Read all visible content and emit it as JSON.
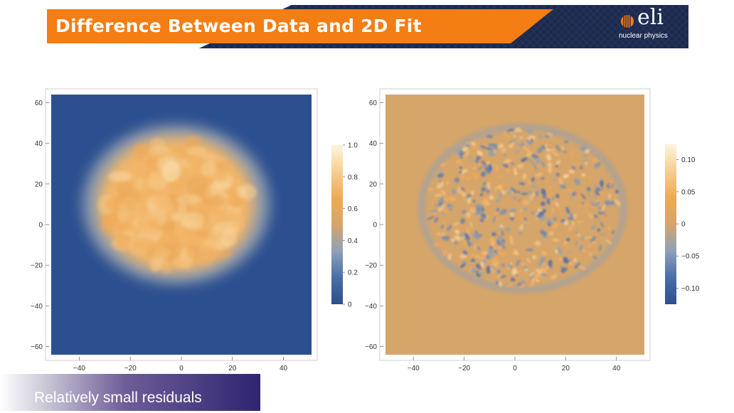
{
  "slide": {
    "title": "Difference Between Data and 2D Fit",
    "caption": "Relatively small residuals",
    "logo": {
      "word": "eli",
      "subtitle": "nuclear physics"
    }
  },
  "colors": {
    "banner_orange": "#f47d14",
    "banner_navy": "#1c2a4e",
    "colormap": [
      "#2c4f8f",
      "#4a6ea8",
      "#8ea1b8",
      "#d6a56a",
      "#f0a955",
      "#f6cf92",
      "#fdf5df"
    ]
  },
  "chart_data": [
    {
      "type": "heatmap",
      "title": "",
      "xlabel": "",
      "ylabel": "",
      "xlim": [
        -51,
        51
      ],
      "ylim": [
        -64,
        64
      ],
      "x_ticks": [
        -40,
        -20,
        0,
        20,
        40
      ],
      "y_ticks": [
        -60,
        -40,
        -20,
        0,
        20,
        40,
        60
      ],
      "x_tick_labels": [
        "−40",
        "−20",
        "0",
        "20",
        "40"
      ],
      "y_tick_labels": [
        "−60",
        "−40",
        "−20",
        "0",
        "20",
        "40",
        "60"
      ],
      "colorbar": {
        "range": [
          0,
          1.0
        ],
        "ticks": [
          0,
          0.2,
          0.4,
          0.6,
          0.8,
          1.0
        ],
        "tick_labels": [
          "0",
          "0.2",
          "0.4",
          "0.6",
          "0.8",
          "1.0"
        ]
      },
      "features": {
        "blob_center": [
          -2,
          10
        ],
        "blob_radii": [
          34,
          37
        ],
        "peak_value": 0.85,
        "background_value": 0.0
      },
      "grid": false
    },
    {
      "type": "heatmap",
      "title": "",
      "xlabel": "",
      "ylabel": "",
      "xlim": [
        -51,
        51
      ],
      "ylim": [
        -64,
        64
      ],
      "x_ticks": [
        -40,
        -20,
        0,
        20,
        40
      ],
      "y_ticks": [
        -60,
        -40,
        -20,
        0,
        20,
        40,
        60
      ],
      "x_tick_labels": [
        "−40",
        "−20",
        "0",
        "20",
        "40"
      ],
      "y_tick_labels": [
        "−60",
        "−40",
        "−20",
        "0",
        "20",
        "40",
        "60"
      ],
      "colorbar": {
        "range": [
          -0.125,
          0.125
        ],
        "ticks": [
          -0.1,
          -0.05,
          0,
          0.05,
          0.1
        ],
        "tick_labels": [
          "−0.10",
          "−0.05",
          "0",
          "0.05",
          "0.10"
        ]
      },
      "features": {
        "blob_center": [
          3,
          8
        ],
        "blob_radii": [
          39,
          40
        ],
        "residual_amplitude": 0.1,
        "background_value": 0.0
      },
      "grid": false
    }
  ]
}
